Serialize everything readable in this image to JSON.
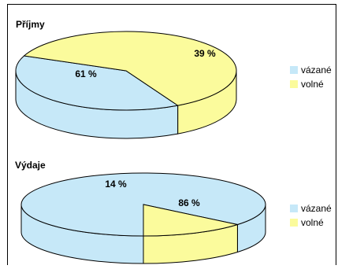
{
  "colors": {
    "bound": "#c6e8f8",
    "free": "#fbfb9c",
    "stroke": "#000000"
  },
  "chart_data": [
    {
      "type": "pie",
      "title": "Příjmy",
      "categories": [
        "vázané",
        "volné"
      ],
      "values": [
        39,
        61
      ],
      "labels": [
        "39 %",
        "61 %"
      ],
      "colors": [
        "#c6e8f8",
        "#fbfb9c"
      ],
      "legend": "right"
    },
    {
      "type": "pie",
      "title": "Výdaje",
      "categories": [
        "vázané",
        "volné"
      ],
      "values": [
        86,
        14
      ],
      "labels": [
        "86 %",
        "14 %"
      ],
      "colors": [
        "#c6e8f8",
        "#fbfb9c"
      ],
      "legend": "right"
    }
  ]
}
